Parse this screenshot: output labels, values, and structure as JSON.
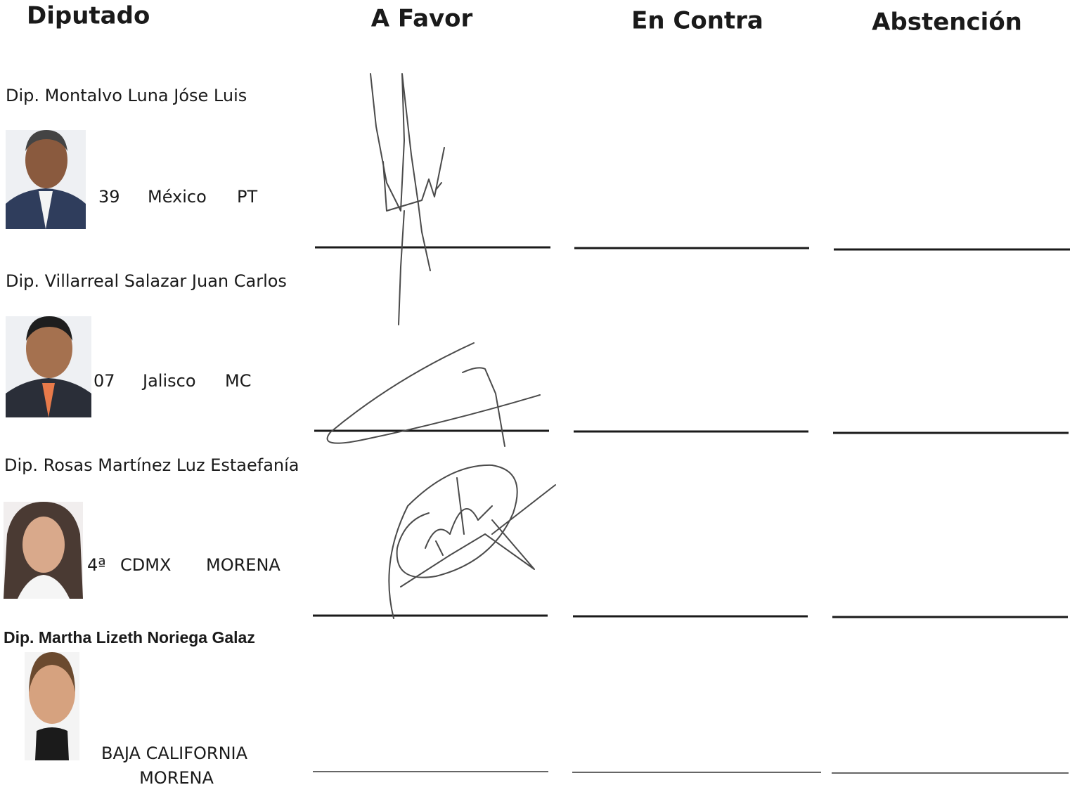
{
  "header": {
    "columns": [
      "Diputado",
      "A Favor",
      "En Contra",
      "Abstención"
    ]
  },
  "rows": [
    {
      "name": "Dip. Montalvo Luna Jóse Luis",
      "district": "39",
      "state": "México",
      "party": "PT"
    },
    {
      "name": "Dip. Villarreal Salazar Juan Carlos",
      "district": "07",
      "state": "Jalisco",
      "party": "MC"
    },
    {
      "name": "Dip. Rosas Martínez Luz Estaefanía",
      "district": "4ª",
      "state": "CDMX",
      "party": "MORENA"
    },
    {
      "name": "Dip. Martha Lizeth Noriega Galaz",
      "state": "BAJA CALIFORNIA",
      "party": "MORENA"
    }
  ]
}
